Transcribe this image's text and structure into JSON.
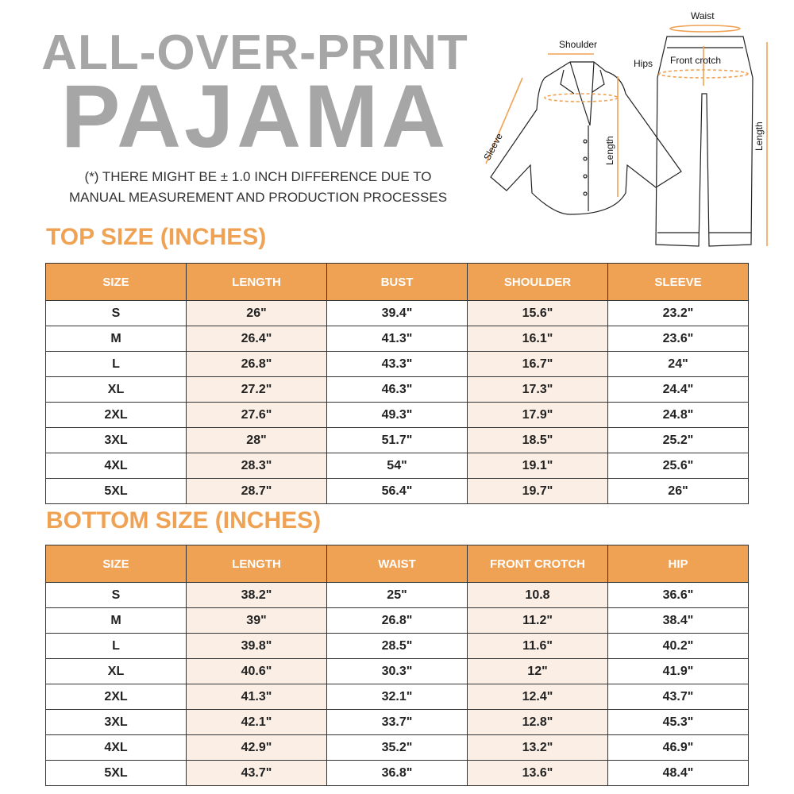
{
  "title": {
    "line1": "ALL-OVER-PRINT",
    "line2": "PAJAMA"
  },
  "note": {
    "line1": "(*) THERE MIGHT BE ± 1.0 INCH DIFFERENCE DUE TO",
    "line2": "MANUAL MEASUREMENT AND PRODUCTION PROCESSES"
  },
  "diagram": {
    "labels": {
      "shoulder": "Shoulder",
      "sleeve": "Sleeve",
      "top_length": "Length",
      "waist": "Waist",
      "hips": "Hips",
      "front_crotch": "Front crotch",
      "bottom_length": "Length"
    }
  },
  "colors": {
    "accent": "#f0a254",
    "title_gray": "#a6a6a6",
    "tint": "#fbeee5"
  },
  "top": {
    "heading": "TOP SIZE (INCHES)",
    "columns": [
      "SIZE",
      "LENGTH",
      "BUST",
      "SHOULDER",
      "SLEEVE"
    ],
    "rows": [
      [
        "S",
        "26\"",
        "39.4\"",
        "15.6\"",
        "23.2\""
      ],
      [
        "M",
        "26.4\"",
        "41.3\"",
        "16.1\"",
        "23.6\""
      ],
      [
        "L",
        "26.8\"",
        "43.3\"",
        "16.7\"",
        "24\""
      ],
      [
        "XL",
        "27.2\"",
        "46.3\"",
        "17.3\"",
        "24.4\""
      ],
      [
        "2XL",
        "27.6\"",
        "49.3\"",
        "17.9\"",
        "24.8\""
      ],
      [
        "3XL",
        "28\"",
        "51.7\"",
        "18.5\"",
        "25.2\""
      ],
      [
        "4XL",
        "28.3\"",
        "54\"",
        "19.1\"",
        "25.6\""
      ],
      [
        "5XL",
        "28.7\"",
        "56.4\"",
        "19.7\"",
        "26\""
      ]
    ]
  },
  "bottom": {
    "heading": "BOTTOM SIZE (INCHES)",
    "columns": [
      "SIZE",
      "LENGTH",
      "WAIST",
      "FRONT CROTCH",
      "HIP"
    ],
    "rows": [
      [
        "S",
        "38.2\"",
        "25\"",
        "10.8",
        "36.6\""
      ],
      [
        "M",
        "39\"",
        "26.8\"",
        "11.2\"",
        "38.4\""
      ],
      [
        "L",
        "39.8\"",
        "28.5\"",
        "11.6\"",
        "40.2\""
      ],
      [
        "XL",
        "40.6\"",
        "30.3\"",
        "12\"",
        "41.9\""
      ],
      [
        "2XL",
        "41.3\"",
        "32.1\"",
        "12.4\"",
        "43.7\""
      ],
      [
        "3XL",
        "42.1\"",
        "33.7\"",
        "12.8\"",
        "45.3\""
      ],
      [
        "4XL",
        "42.9\"",
        "35.2\"",
        "13.2\"",
        "46.9\""
      ],
      [
        "5XL",
        "43.7\"",
        "36.8\"",
        "13.6\"",
        "48.4\""
      ]
    ]
  }
}
